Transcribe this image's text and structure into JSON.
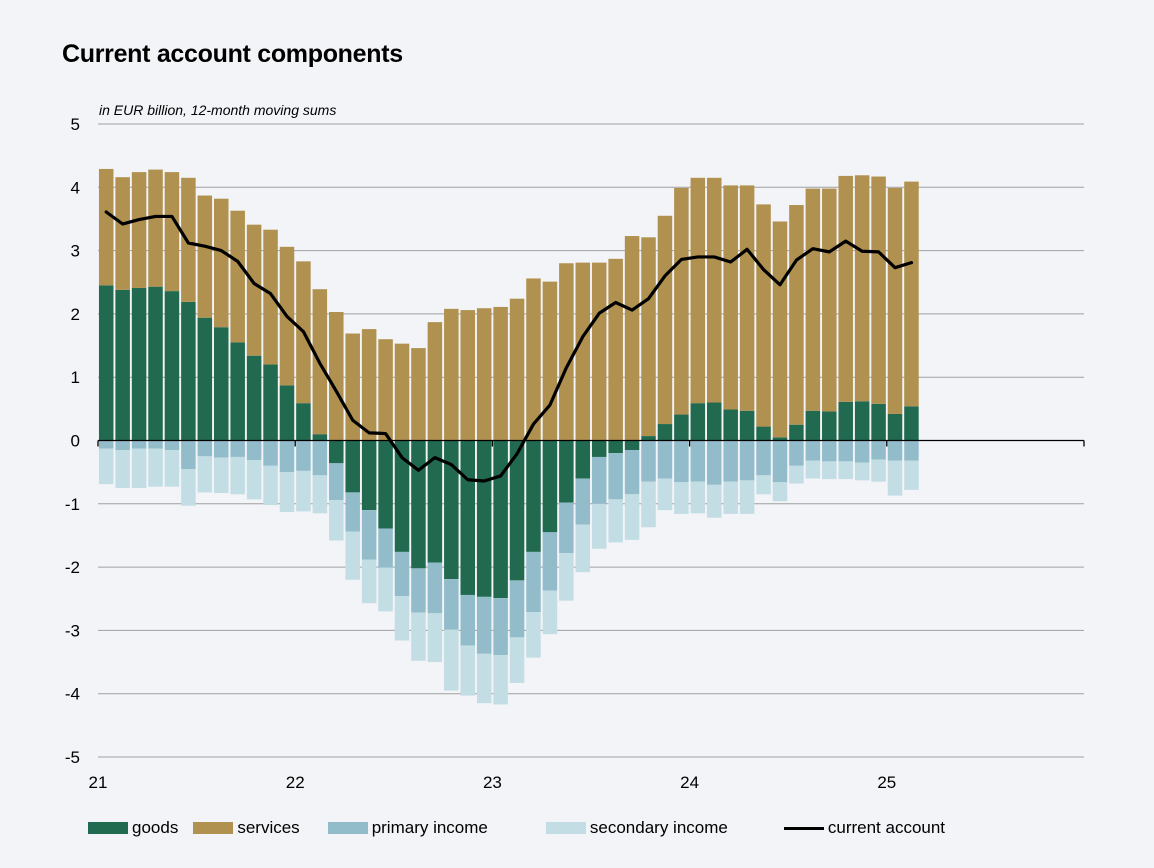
{
  "chart_data": {
    "type": "bar",
    "title": "Current account components",
    "subtitle": "in EUR billion, 12-month moving sums",
    "xlabel": "",
    "ylabel": "",
    "ylim": [
      -5,
      5
    ],
    "yticks": [
      5,
      4,
      3,
      2,
      1,
      0,
      -1,
      -2,
      -3,
      -4,
      -5
    ],
    "year_labels": [
      "21",
      "22",
      "23",
      "24",
      "25"
    ],
    "x_range_months": 60,
    "grid": true,
    "legend_placement": "bottom",
    "colors": {
      "goods": "#216a50",
      "services": "#b09150",
      "primary_income": "#93bcca",
      "secondary_income": "#c2dde3",
      "current_account": "#000000",
      "background": "#f3f4f8",
      "grid": "#a0a0a0"
    },
    "series": [
      {
        "name": "goods",
        "kind": "bar",
        "values": [
          2.45,
          2.38,
          2.41,
          2.43,
          2.36,
          2.19,
          1.94,
          1.79,
          1.55,
          1.34,
          1.2,
          0.87,
          0.59,
          0.1,
          -0.36,
          -0.82,
          -1.1,
          -1.39,
          -1.76,
          -2.02,
          -1.93,
          -2.19,
          -2.44,
          -2.47,
          -2.49,
          -2.21,
          -1.76,
          -1.45,
          -0.98,
          -0.6,
          -0.26,
          -0.2,
          -0.15,
          0.07,
          0.26,
          0.41,
          0.59,
          0.6,
          0.49,
          0.47,
          0.22,
          0.05,
          0.25,
          0.47,
          0.46,
          0.61,
          0.62,
          0.58,
          0.42,
          0.54
        ]
      },
      {
        "name": "services",
        "kind": "bar",
        "values": [
          1.84,
          1.78,
          1.83,
          1.85,
          1.88,
          1.96,
          1.93,
          2.03,
          2.08,
          2.07,
          2.13,
          2.19,
          2.24,
          2.29,
          2.03,
          1.69,
          1.76,
          1.6,
          1.53,
          1.46,
          1.87,
          2.08,
          2.06,
          2.09,
          2.11,
          2.24,
          2.56,
          2.51,
          2.8,
          2.81,
          2.81,
          2.87,
          3.23,
          3.14,
          3.29,
          3.58,
          3.56,
          3.55,
          3.54,
          3.56,
          3.51,
          3.41,
          3.47,
          3.51,
          3.52,
          3.57,
          3.57,
          3.59,
          3.57,
          3.55
        ]
      },
      {
        "name": "primary income",
        "kind": "bar",
        "values": [
          -0.13,
          -0.15,
          -0.13,
          -0.13,
          -0.15,
          -0.45,
          -0.25,
          -0.27,
          -0.26,
          -0.31,
          -0.4,
          -0.5,
          -0.48,
          -0.55,
          -0.58,
          -0.62,
          -0.78,
          -0.62,
          -0.7,
          -0.7,
          -0.8,
          -0.8,
          -0.8,
          -0.9,
          -0.9,
          -0.9,
          -0.95,
          -0.92,
          -0.8,
          -0.73,
          -0.74,
          -0.73,
          -0.7,
          -0.65,
          -0.6,
          -0.66,
          -0.65,
          -0.7,
          -0.65,
          -0.63,
          -0.55,
          -0.66,
          -0.4,
          -0.32,
          -0.33,
          -0.33,
          -0.35,
          -0.3,
          -0.32,
          -0.32
        ]
      },
      {
        "name": "secondary income",
        "kind": "bar",
        "values": [
          -0.56,
          -0.6,
          -0.62,
          -0.6,
          -0.58,
          -0.58,
          -0.57,
          -0.56,
          -0.59,
          -0.62,
          -0.62,
          -0.63,
          -0.64,
          -0.6,
          -0.64,
          -0.76,
          -0.69,
          -0.69,
          -0.7,
          -0.76,
          -0.77,
          -0.96,
          -0.79,
          -0.78,
          -0.78,
          -0.72,
          -0.72,
          -0.69,
          -0.75,
          -0.75,
          -0.71,
          -0.68,
          -0.72,
          -0.72,
          -0.5,
          -0.5,
          -0.5,
          -0.52,
          -0.51,
          -0.53,
          -0.3,
          -0.3,
          -0.28,
          -0.28,
          -0.28,
          -0.28,
          -0.28,
          -0.35,
          -0.55,
          -0.46
        ]
      },
      {
        "name": "current account",
        "kind": "line",
        "values": [
          3.61,
          3.42,
          3.49,
          3.54,
          3.54,
          3.12,
          3.07,
          3.0,
          2.83,
          2.48,
          2.32,
          1.96,
          1.72,
          1.22,
          0.78,
          0.32,
          0.12,
          0.11,
          -0.27,
          -0.47,
          -0.27,
          -0.38,
          -0.62,
          -0.64,
          -0.56,
          -0.21,
          0.26,
          0.56,
          1.15,
          1.64,
          2.01,
          2.18,
          2.06,
          2.24,
          2.6,
          2.86,
          2.9,
          2.9,
          2.82,
          3.02,
          2.7,
          2.46,
          2.85,
          3.03,
          2.98,
          3.15,
          2.99,
          2.98,
          2.73,
          2.81
        ]
      }
    ]
  },
  "legend": [
    {
      "key": "goods",
      "label": "goods",
      "type": "swatch",
      "color": "#216a50"
    },
    {
      "key": "services",
      "label": "services",
      "type": "swatch",
      "color": "#b09150"
    },
    {
      "key": "primary",
      "label": "primary income",
      "type": "swatch",
      "color": "#93bcca"
    },
    {
      "key": "secondary",
      "label": "secondary income",
      "type": "swatch",
      "color": "#c2dde3"
    },
    {
      "key": "current",
      "label": "current account",
      "type": "line",
      "color": "#000000"
    }
  ]
}
